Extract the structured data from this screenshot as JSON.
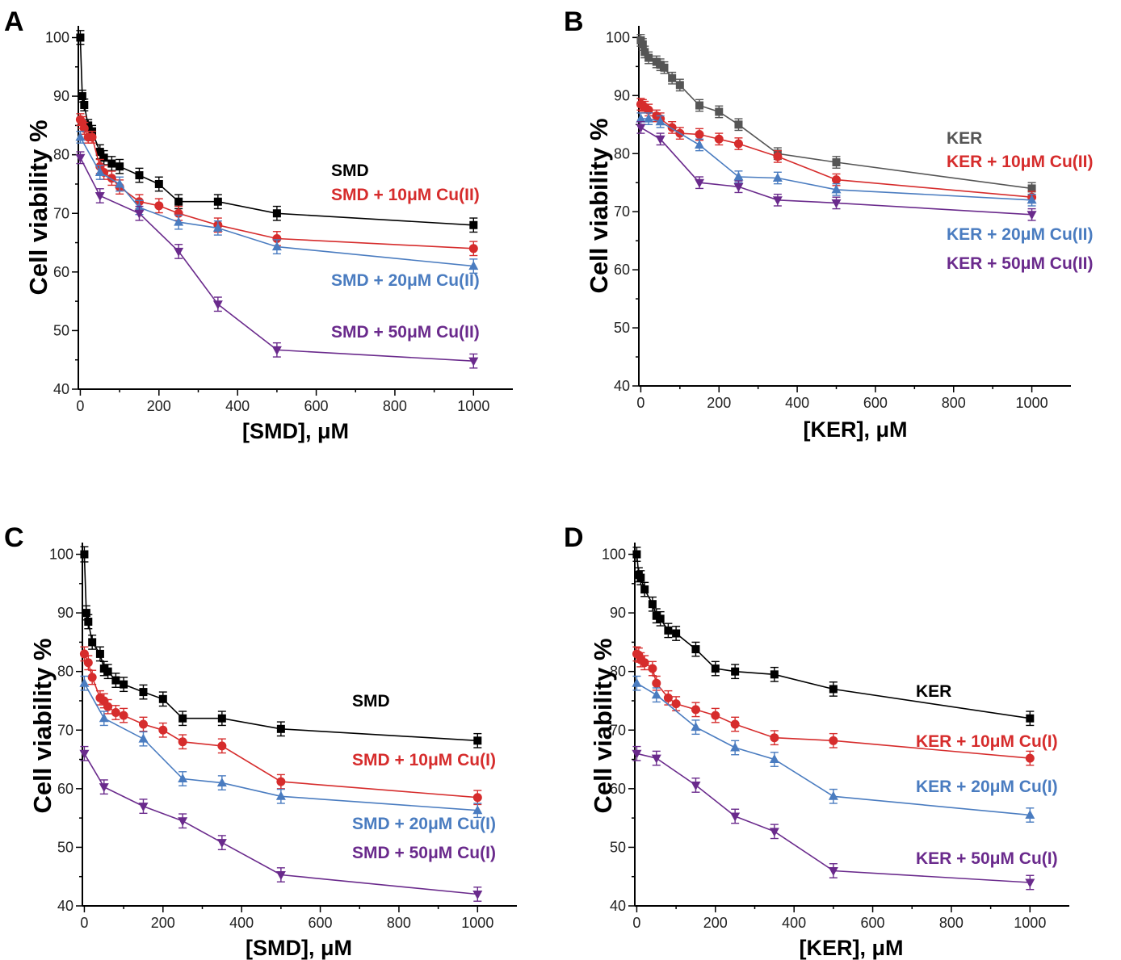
{
  "chart_data": [
    {
      "panel": "A",
      "type": "line",
      "xlabel": "[SMD], μM",
      "ylabel": "Cell viability %",
      "xlim": [
        -5,
        1100
      ],
      "ylim": [
        40,
        102
      ],
      "xticks": [
        0,
        200,
        400,
        600,
        800,
        1000
      ],
      "yticks": [
        40,
        50,
        60,
        70,
        80,
        90,
        100
      ],
      "series": [
        {
          "name": "SMD",
          "color": "#000000",
          "marker": "square",
          "x": [
            0,
            5,
            10,
            20,
            30,
            50,
            60,
            80,
            100,
            150,
            200,
            250,
            350,
            500,
            1000
          ],
          "y": [
            100,
            90,
            88.5,
            85,
            84,
            80.5,
            79.5,
            78.5,
            78,
            76.5,
            75,
            72,
            72,
            70,
            68
          ],
          "err": [
            1.2,
            1,
            1,
            1,
            1,
            1.2,
            1.2,
            1.2,
            1.2,
            1.2,
            1.2,
            1.2,
            1.2,
            1.2,
            1.2
          ]
        },
        {
          "name": "SMD + 10μM Cu(II)",
          "color": "#d62c2c",
          "marker": "circle",
          "x": [
            0,
            5,
            10,
            20,
            30,
            50,
            60,
            80,
            100,
            150,
            200,
            250,
            350,
            500,
            1000
          ],
          "y": [
            86,
            85.5,
            84.5,
            83,
            83,
            78,
            77,
            76,
            74.5,
            72,
            71.3,
            70,
            68,
            65.7,
            64
          ],
          "err": [
            1,
            1,
            1,
            1,
            1,
            1.2,
            1.2,
            1.2,
            1.2,
            1.2,
            1.2,
            1.2,
            1.2,
            1.2,
            1.2
          ]
        },
        {
          "name": "SMD + 20μM Cu(II)",
          "color": "#4a7cc0",
          "marker": "triangle-up",
          "x": [
            0,
            50,
            100,
            150,
            250,
            350,
            500,
            1000
          ],
          "y": [
            83,
            77,
            75,
            71,
            68.5,
            67.5,
            64.3,
            61
          ],
          "err": [
            1,
            1.2,
            1.2,
            1.2,
            1.2,
            1.2,
            1.2,
            1.2
          ]
        },
        {
          "name": "SMD + 50μM Cu(II)",
          "color": "#6a2a8c",
          "marker": "triangle-down",
          "x": [
            0,
            50,
            150,
            250,
            350,
            500,
            1000
          ],
          "y": [
            79.5,
            73,
            70,
            63.5,
            54.5,
            46.7,
            44.8
          ],
          "err": [
            1,
            1.2,
            1.2,
            1.2,
            1.2,
            1.2,
            1.2
          ]
        }
      ],
      "legend": [
        "SMD",
        "SMD + 10μM Cu(II)",
        "SMD + 20μM Cu(II)",
        "SMD + 50μM Cu(II)"
      ]
    },
    {
      "panel": "B",
      "type": "line",
      "xlabel": "[KER], μM",
      "ylabel": "Cell viability %",
      "xlim": [
        -5,
        1100
      ],
      "ylim": [
        40,
        102
      ],
      "xticks": [
        0,
        200,
        400,
        600,
        800,
        1000
      ],
      "yticks": [
        40,
        50,
        60,
        70,
        80,
        90,
        100
      ],
      "series": [
        {
          "name": "KER",
          "color": "#555555",
          "marker": "square",
          "x": [
            0,
            5,
            10,
            20,
            40,
            50,
            60,
            80,
            100,
            150,
            200,
            250,
            350,
            500,
            1000
          ],
          "y": [
            99.5,
            98.8,
            97.5,
            96.5,
            95.8,
            95.3,
            94.8,
            93,
            91.8,
            88.3,
            87.2,
            85,
            80,
            78.5,
            74
          ],
          "err": [
            1,
            1,
            1,
            1,
            1,
            1,
            1,
            1,
            1,
            1,
            1,
            1,
            1,
            1,
            1
          ]
        },
        {
          "name": "KER + 10μM Cu(II)",
          "color": "#d62c2c",
          "marker": "circle",
          "x": [
            0,
            5,
            10,
            20,
            40,
            50,
            80,
            100,
            150,
            200,
            250,
            350,
            500,
            1000
          ],
          "y": [
            88.5,
            88.3,
            88,
            87.5,
            86.5,
            86,
            84.5,
            83.5,
            83.3,
            82.5,
            81.7,
            79.5,
            75.5,
            72.5
          ],
          "err": [
            1,
            1,
            1,
            1,
            1,
            1,
            1,
            1,
            1,
            1,
            1,
            1,
            1,
            1
          ]
        },
        {
          "name": "KER + 20μM Cu(II)",
          "color": "#4a7cc0",
          "marker": "triangle-up",
          "x": [
            0,
            20,
            50,
            150,
            250,
            350,
            500,
            1000
          ],
          "y": [
            86,
            86,
            85.5,
            81.5,
            76,
            75.8,
            73.8,
            72
          ],
          "err": [
            1,
            1,
            1,
            1,
            1,
            1,
            1,
            1
          ]
        },
        {
          "name": "KER + 50μM Cu(II)",
          "color": "#6a2a8c",
          "marker": "triangle-down",
          "x": [
            0,
            50,
            150,
            250,
            350,
            500,
            1000
          ],
          "y": [
            84.5,
            82.5,
            75,
            74.3,
            72,
            71.5,
            69.5
          ],
          "err": [
            1,
            1,
            1,
            1,
            1,
            1,
            1
          ]
        }
      ],
      "legend": [
        "KER",
        "KER + 10μM Cu(II)",
        "KER + 20μM Cu(II)",
        "KER + 50μM Cu(II)"
      ]
    },
    {
      "panel": "C",
      "type": "line",
      "xlabel": "[SMD], μM",
      "ylabel": "Cell viability %",
      "xlim": [
        -5,
        1100
      ],
      "ylim": [
        40,
        102
      ],
      "xticks": [
        0,
        200,
        400,
        600,
        800,
        1000
      ],
      "yticks": [
        40,
        50,
        60,
        70,
        80,
        90,
        100
      ],
      "series": [
        {
          "name": "SMD",
          "color": "#000000",
          "marker": "square",
          "x": [
            0,
            5,
            10,
            20,
            40,
            50,
            60,
            80,
            100,
            150,
            200,
            250,
            350,
            500,
            1000
          ],
          "y": [
            100,
            90,
            88.5,
            85,
            83,
            80.5,
            80,
            78.5,
            77.8,
            76.5,
            75.3,
            72,
            72,
            70.2,
            68.2
          ],
          "err": [
            1.3,
            1.2,
            1.2,
            1.2,
            1.2,
            1.2,
            1.2,
            1.2,
            1.2,
            1.2,
            1.2,
            1.2,
            1.2,
            1.2,
            1.2
          ]
        },
        {
          "name": "SMD + 10μM Cu(I)",
          "color": "#d62c2c",
          "marker": "circle",
          "x": [
            0,
            10,
            20,
            40,
            50,
            60,
            80,
            100,
            150,
            200,
            250,
            350,
            500,
            1000
          ],
          "y": [
            83,
            81.5,
            79,
            75.5,
            75,
            74,
            73,
            72.5,
            71,
            70,
            68,
            67.3,
            61.2,
            58.5
          ],
          "err": [
            1.2,
            1.2,
            1.2,
            1.2,
            1.2,
            1.2,
            1.2,
            1.2,
            1.2,
            1.2,
            1.2,
            1.2,
            1.2,
            1.2
          ]
        },
        {
          "name": "SMD + 20μM Cu(I)",
          "color": "#4a7cc0",
          "marker": "triangle-up",
          "x": [
            0,
            50,
            150,
            250,
            350,
            500,
            1000
          ],
          "y": [
            78,
            72,
            68.5,
            61.7,
            61,
            58.7,
            56.3
          ],
          "err": [
            1.2,
            1.2,
            1.2,
            1.2,
            1.2,
            1.2,
            1.2
          ]
        },
        {
          "name": "SMD + 50μM Cu(I)",
          "color": "#6a2a8c",
          "marker": "triangle-down",
          "x": [
            0,
            50,
            150,
            250,
            350,
            500,
            1000
          ],
          "y": [
            66,
            60.3,
            57,
            54.5,
            50.8,
            45.3,
            42
          ],
          "err": [
            1.2,
            1.2,
            1.2,
            1.2,
            1.2,
            1.2,
            1.2
          ]
        }
      ],
      "legend": [
        "SMD",
        "SMD + 10μM Cu(I)",
        "SMD + 20μM Cu(I)",
        "SMD + 50μM Cu(I)"
      ]
    },
    {
      "panel": "D",
      "type": "line",
      "xlabel": "[KER], μM",
      "ylabel": "Cell viability %",
      "xlim": [
        -5,
        1100
      ],
      "ylim": [
        40,
        102
      ],
      "xticks": [
        0,
        200,
        400,
        600,
        800,
        1000
      ],
      "yticks": [
        40,
        50,
        60,
        70,
        80,
        90,
        100
      ],
      "series": [
        {
          "name": "KER",
          "color": "#000000",
          "marker": "square",
          "x": [
            0,
            5,
            10,
            20,
            40,
            50,
            60,
            80,
            100,
            150,
            200,
            250,
            350,
            500,
            1000
          ],
          "y": [
            100,
            96.5,
            96,
            94,
            91.5,
            89.5,
            89,
            87,
            86.5,
            83.8,
            80.5,
            80,
            79.5,
            77,
            72
          ],
          "err": [
            1.2,
            1.2,
            1.2,
            1.2,
            1.2,
            1.2,
            1.2,
            1.2,
            1.2,
            1.2,
            1.2,
            1.2,
            1.2,
            1.2,
            1.2
          ]
        },
        {
          "name": "KER + 10μM Cu(I)",
          "color": "#d62c2c",
          "marker": "circle",
          "x": [
            0,
            5,
            10,
            20,
            40,
            50,
            80,
            100,
            150,
            200,
            250,
            350,
            500,
            1000
          ],
          "y": [
            83,
            82.8,
            82,
            81.5,
            80.5,
            78,
            75.5,
            74.5,
            73.5,
            72.5,
            71,
            68.7,
            68.2,
            65.2
          ],
          "err": [
            1.2,
            1.2,
            1.2,
            1.2,
            1.2,
            1.2,
            1.2,
            1.2,
            1.2,
            1.2,
            1.2,
            1.2,
            1.2,
            1.2
          ]
        },
        {
          "name": "KER + 20μM Cu(I)",
          "color": "#4a7cc0",
          "marker": "triangle-up",
          "x": [
            0,
            50,
            150,
            250,
            350,
            500,
            1000
          ],
          "y": [
            78,
            76,
            70.5,
            67,
            65,
            58.7,
            55.5
          ],
          "err": [
            1.2,
            1.2,
            1.2,
            1.2,
            1.2,
            1.2,
            1.2
          ]
        },
        {
          "name": "KER + 50μM Cu(I)",
          "color": "#6a2a8c",
          "marker": "triangle-down",
          "x": [
            0,
            50,
            150,
            250,
            350,
            500,
            1000
          ],
          "y": [
            66,
            65.2,
            60.6,
            55.3,
            52.7,
            46,
            44
          ],
          "err": [
            1.2,
            1.2,
            1.2,
            1.2,
            1.2,
            1.2,
            1.2
          ]
        }
      ],
      "legend": [
        "KER",
        "KER + 10μM Cu(I)",
        "KER + 20μM Cu(I)",
        "KER + 50μM Cu(I)"
      ]
    }
  ]
}
